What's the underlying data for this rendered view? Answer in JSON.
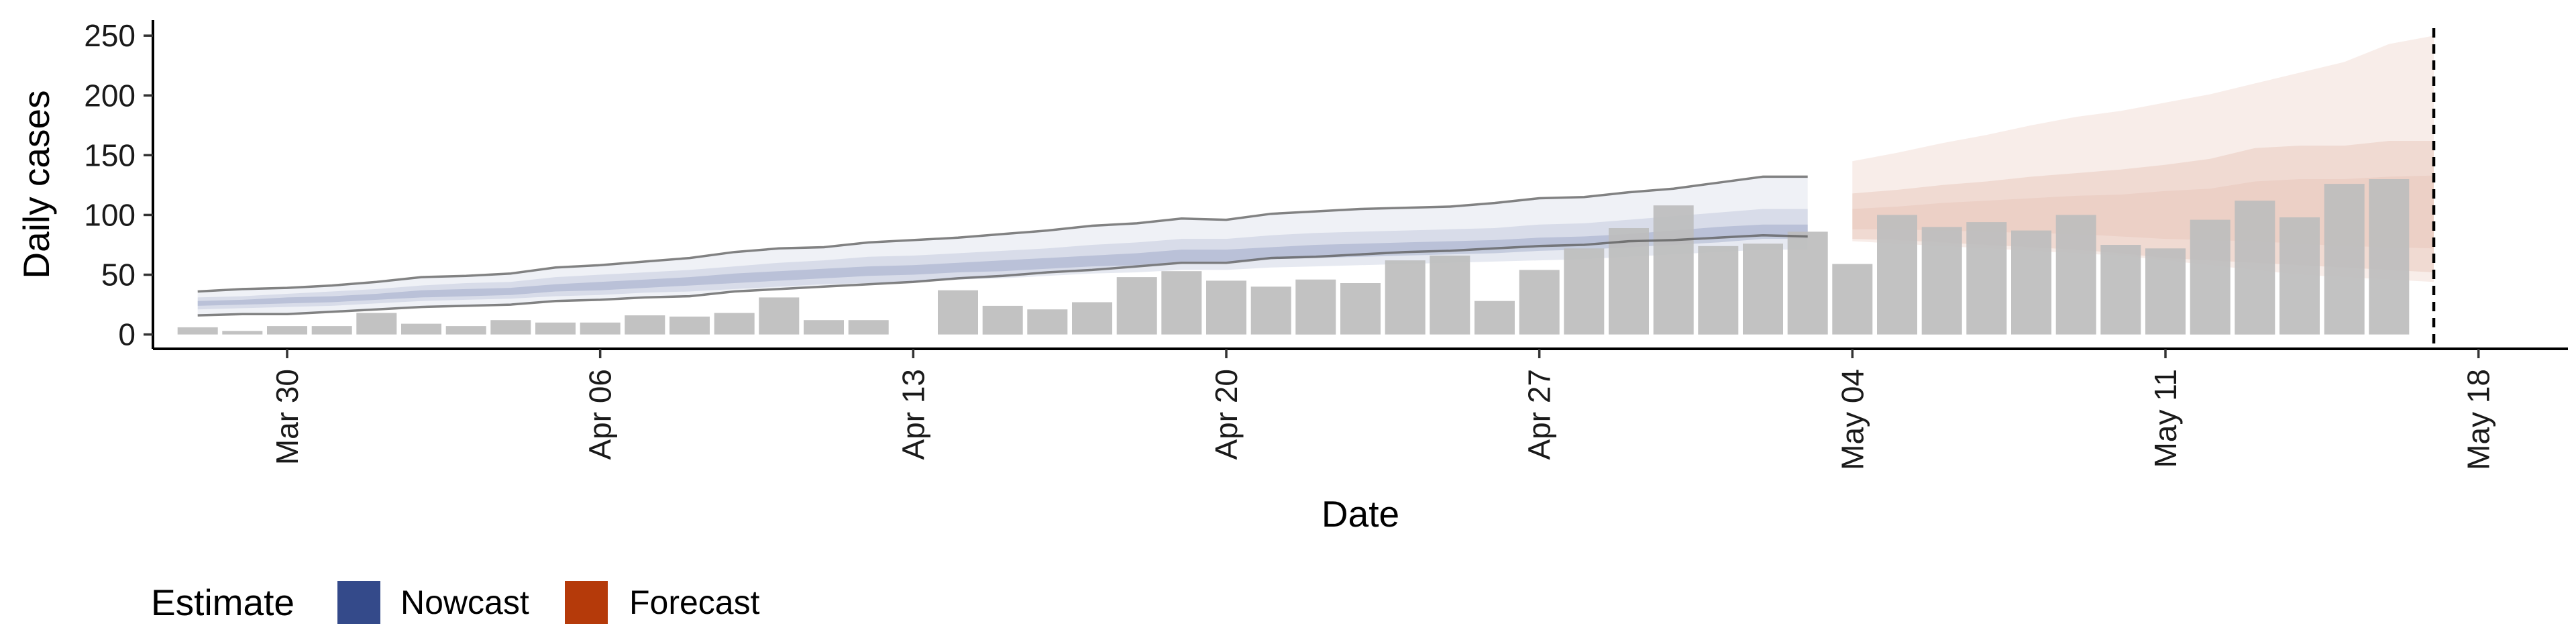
{
  "chart_data": {
    "type": "bar",
    "xlabel": "Date",
    "ylabel": "Daily cases",
    "x_range": [
      "2020-03-27",
      "2020-05-20"
    ],
    "ylim": [
      -12,
      263
    ],
    "y_ticks": [
      0,
      50,
      100,
      150,
      200,
      250
    ],
    "x_ticks": [
      {
        "date": "2020-03-30",
        "label": "Mar 30"
      },
      {
        "date": "2020-04-06",
        "label": "Apr 06"
      },
      {
        "date": "2020-04-13",
        "label": "Apr 13"
      },
      {
        "date": "2020-04-20",
        "label": "Apr 20"
      },
      {
        "date": "2020-04-27",
        "label": "Apr 27"
      },
      {
        "date": "2020-05-04",
        "label": "May 04"
      },
      {
        "date": "2020-05-11",
        "label": "May 11"
      },
      {
        "date": "2020-05-18",
        "label": "May 18"
      }
    ],
    "grid": false,
    "legend_position": "bottom-left",
    "legend": {
      "title": "Estimate",
      "entries": [
        {
          "label": "Nowcast",
          "color": "#344a8a"
        },
        {
          "label": "Forecast",
          "color": "#b53a0a"
        }
      ]
    },
    "vline_date": "2020-05-17",
    "observed_cases": {
      "color": "#bdbdbd",
      "dates": [
        "2020-03-28",
        "2020-03-29",
        "2020-03-30",
        "2020-03-31",
        "2020-04-01",
        "2020-04-02",
        "2020-04-03",
        "2020-04-04",
        "2020-04-05",
        "2020-04-06",
        "2020-04-07",
        "2020-04-08",
        "2020-04-09",
        "2020-04-10",
        "2020-04-11",
        "2020-04-12",
        "2020-04-13",
        "2020-04-14",
        "2020-04-15",
        "2020-04-16",
        "2020-04-17",
        "2020-04-18",
        "2020-04-19",
        "2020-04-20",
        "2020-04-21",
        "2020-04-22",
        "2020-04-23",
        "2020-04-24",
        "2020-04-25",
        "2020-04-26",
        "2020-04-27",
        "2020-04-28",
        "2020-04-29",
        "2020-04-30",
        "2020-05-01",
        "2020-05-02",
        "2020-05-03",
        "2020-05-04",
        "2020-05-05",
        "2020-05-06",
        "2020-05-07",
        "2020-05-08",
        "2020-05-09",
        "2020-05-10",
        "2020-05-11",
        "2020-05-12",
        "2020-05-13",
        "2020-05-14",
        "2020-05-15",
        "2020-05-16",
        "2020-05-17"
      ],
      "values": [
        6,
        3,
        7,
        7,
        18,
        9,
        7,
        12,
        10,
        10,
        16,
        15,
        18,
        31,
        12,
        12,
        0,
        37,
        24,
        21,
        27,
        48,
        53,
        45,
        40,
        46,
        43,
        62,
        66,
        28,
        54,
        72,
        89,
        108,
        74,
        76,
        86,
        59,
        100,
        90,
        94,
        87,
        100,
        75,
        72,
        96,
        112,
        98,
        126,
        130,
        0
      ]
    },
    "nowcast": {
      "color": "#344a8a",
      "dates": [
        "2020-03-28",
        "2020-03-29",
        "2020-03-30",
        "2020-03-31",
        "2020-04-01",
        "2020-04-02",
        "2020-04-03",
        "2020-04-04",
        "2020-04-05",
        "2020-04-06",
        "2020-04-07",
        "2020-04-08",
        "2020-04-09",
        "2020-04-10",
        "2020-04-11",
        "2020-04-12",
        "2020-04-13",
        "2020-04-14",
        "2020-04-15",
        "2020-04-16",
        "2020-04-17",
        "2020-04-18",
        "2020-04-19",
        "2020-04-20",
        "2020-04-21",
        "2020-04-22",
        "2020-04-23",
        "2020-04-24",
        "2020-04-25",
        "2020-04-26",
        "2020-04-27",
        "2020-04-28",
        "2020-04-29",
        "2020-04-30",
        "2020-05-01",
        "2020-05-02",
        "2020-05-03"
      ],
      "upper90": [
        36,
        38,
        39,
        41,
        44,
        48,
        49,
        51,
        56,
        58,
        61,
        64,
        69,
        72,
        73,
        77,
        79,
        81,
        84,
        87,
        91,
        93,
        97,
        96,
        101,
        103,
        105,
        106,
        107,
        110,
        114,
        115,
        119,
        122,
        127,
        132,
        132
      ],
      "upper50": [
        31,
        32,
        34,
        36,
        38,
        41,
        43,
        44,
        48,
        50,
        52,
        54,
        57,
        60,
        62,
        65,
        66,
        68,
        70,
        72,
        75,
        77,
        80,
        80,
        83,
        85,
        86,
        87,
        88,
        89,
        92,
        93,
        96,
        99,
        102,
        105,
        105
      ],
      "upper20": [
        28,
        29,
        31,
        32,
        34,
        37,
        38,
        39,
        42,
        44,
        46,
        48,
        51,
        53,
        55,
        57,
        58,
        60,
        62,
        64,
        66,
        68,
        71,
        71,
        73,
        75,
        76,
        77,
        78,
        79,
        81,
        82,
        84,
        87,
        90,
        92,
        92
      ],
      "lower20": [
        24,
        25,
        26,
        27,
        29,
        31,
        32,
        33,
        36,
        37,
        39,
        41,
        43,
        45,
        47,
        49,
        50,
        52,
        53,
        55,
        57,
        58,
        61,
        61,
        63,
        64,
        65,
        66,
        67,
        68,
        70,
        71,
        73,
        75,
        77,
        80,
        80
      ],
      "lower50": [
        21,
        22,
        23,
        24,
        26,
        28,
        29,
        30,
        32,
        33,
        35,
        36,
        38,
        40,
        42,
        43,
        44,
        46,
        47,
        49,
        51,
        52,
        54,
        54,
        56,
        57,
        58,
        59,
        60,
        61,
        62,
        63,
        65,
        67,
        69,
        71,
        71
      ],
      "lower90": [
        16,
        17,
        17,
        19,
        21,
        23,
        24,
        25,
        28,
        29,
        31,
        32,
        36,
        38,
        40,
        42,
        44,
        47,
        49,
        52,
        54,
        57,
        60,
        60,
        64,
        65,
        67,
        69,
        70,
        72,
        74,
        75,
        78,
        79,
        81,
        83,
        82
      ]
    },
    "forecast": {
      "color": "#b53a0a",
      "dates": [
        "2020-05-04",
        "2020-05-05",
        "2020-05-06",
        "2020-05-07",
        "2020-05-08",
        "2020-05-09",
        "2020-05-10",
        "2020-05-11",
        "2020-05-12",
        "2020-05-13",
        "2020-05-14",
        "2020-05-15",
        "2020-05-16",
        "2020-05-17"
      ],
      "upper90": [
        145,
        152,
        160,
        167,
        175,
        182,
        187,
        194,
        201,
        210,
        219,
        228,
        243,
        250
      ],
      "upper50": [
        118,
        121,
        125,
        128,
        132,
        135,
        138,
        142,
        147,
        156,
        158,
        158,
        162,
        162
      ],
      "upper20": [
        105,
        107,
        110,
        112,
        114,
        116,
        117,
        120,
        122,
        128,
        130,
        130,
        132,
        133
      ],
      "lower20": [
        88,
        88,
        87,
        86,
        85,
        84,
        82,
        80,
        79,
        78,
        76,
        74,
        73,
        72
      ],
      "lower50": [
        80,
        79,
        77,
        75,
        73,
        71,
        68,
        64,
        62,
        60,
        58,
        56,
        54,
        52
      ],
      "lower90": [
        78,
        76,
        74,
        72,
        70,
        68,
        66,
        62,
        58,
        54,
        50,
        48,
        46,
        44
      ]
    }
  }
}
